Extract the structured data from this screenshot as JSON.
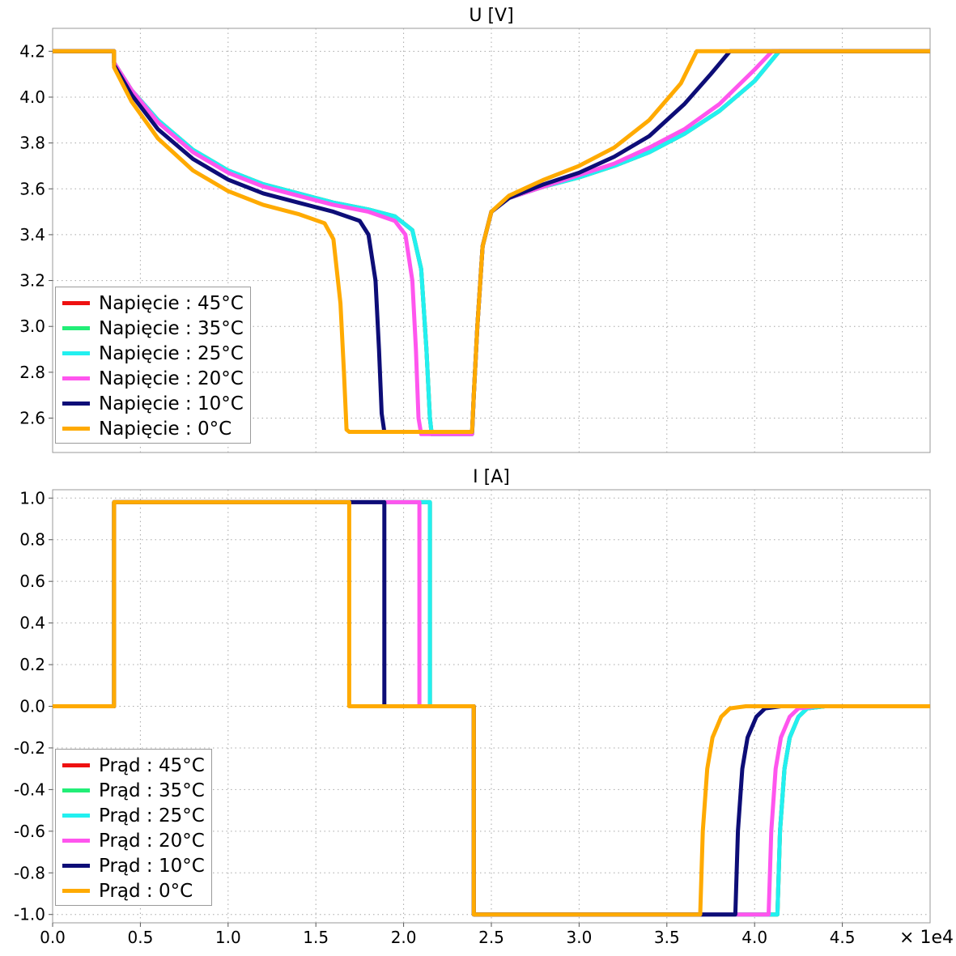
{
  "x_multiplier_label": "× 1e4",
  "colors": {
    "45": "#ee1111",
    "35": "#22ee77",
    "25": "#22f0f0",
    "20": "#ff55ee",
    "10": "#0d0d77",
    "0": "#ffaa00"
  },
  "chart_data": [
    {
      "type": "line",
      "title": "U [V]",
      "xlabel": "",
      "ylabel": "",
      "xlim": [
        0,
        50000
      ],
      "ylim": [
        2.45,
        4.3
      ],
      "x_ticks": [
        "0.0",
        "0.5",
        "1.0",
        "1.5",
        "2.0",
        "2.5",
        "3.0",
        "3.5",
        "4.0",
        "4.5"
      ],
      "y_ticks": [
        "2.6",
        "2.8",
        "3.0",
        "3.2",
        "3.4",
        "3.6",
        "3.8",
        "4.0",
        "4.2"
      ],
      "grid": true,
      "legend_position": "bottom-left",
      "series": [
        {
          "name": "Napięcie : 45°C",
          "color_key": "45",
          "x": [
            0,
            3500,
            3500,
            4500,
            6000,
            8000,
            10000,
            12000,
            14000,
            16000,
            18000,
            19500,
            20500,
            21000,
            21300,
            21500,
            21600,
            23900,
            24000,
            24200,
            24500,
            25000,
            26000,
            28000,
            30000,
            32000,
            34000,
            36000,
            38000,
            40000,
            41400,
            50000
          ],
          "y": [
            4.2,
            4.2,
            4.15,
            4.03,
            3.9,
            3.77,
            3.68,
            3.62,
            3.58,
            3.54,
            3.51,
            3.48,
            3.42,
            3.25,
            2.9,
            2.6,
            2.53,
            2.53,
            2.7,
            3.0,
            3.35,
            3.5,
            3.56,
            3.61,
            3.65,
            3.7,
            3.76,
            3.84,
            3.94,
            4.07,
            4.2,
            4.2
          ]
        },
        {
          "name": "Napięcie : 35°C",
          "color_key": "35",
          "x": [
            0,
            3500,
            3500,
            4500,
            6000,
            8000,
            10000,
            12000,
            14000,
            16000,
            18000,
            19500,
            20500,
            21000,
            21300,
            21500,
            21600,
            23900,
            24000,
            24200,
            24500,
            25000,
            26000,
            28000,
            30000,
            32000,
            34000,
            36000,
            38000,
            40000,
            41400,
            50000
          ],
          "y": [
            4.2,
            4.2,
            4.15,
            4.03,
            3.9,
            3.77,
            3.68,
            3.62,
            3.58,
            3.54,
            3.51,
            3.48,
            3.42,
            3.25,
            2.9,
            2.6,
            2.53,
            2.53,
            2.7,
            3.0,
            3.35,
            3.5,
            3.56,
            3.61,
            3.65,
            3.7,
            3.76,
            3.84,
            3.94,
            4.07,
            4.2,
            4.2
          ]
        },
        {
          "name": "Napięcie : 25°C",
          "color_key": "25",
          "x": [
            0,
            3500,
            3500,
            4500,
            6000,
            8000,
            10000,
            12000,
            14000,
            16000,
            18000,
            19500,
            20500,
            21000,
            21300,
            21500,
            21600,
            23900,
            24000,
            24200,
            24500,
            25000,
            26000,
            28000,
            30000,
            32000,
            34000,
            36000,
            38000,
            40000,
            41400,
            50000
          ],
          "y": [
            4.2,
            4.2,
            4.15,
            4.03,
            3.9,
            3.77,
            3.68,
            3.62,
            3.58,
            3.54,
            3.51,
            3.48,
            3.42,
            3.25,
            2.9,
            2.6,
            2.53,
            2.53,
            2.7,
            3.0,
            3.35,
            3.5,
            3.56,
            3.61,
            3.65,
            3.7,
            3.76,
            3.84,
            3.94,
            4.07,
            4.2,
            4.2
          ]
        },
        {
          "name": "Napięcie : 20°C",
          "color_key": "20",
          "x": [
            0,
            3500,
            3500,
            4500,
            6000,
            8000,
            10000,
            12000,
            14000,
            16000,
            18000,
            19500,
            20100,
            20500,
            20700,
            20850,
            21000,
            23900,
            24000,
            24200,
            24500,
            25000,
            26000,
            28000,
            30000,
            32000,
            34000,
            36000,
            38000,
            40000,
            41000,
            50000
          ],
          "y": [
            4.2,
            4.2,
            4.15,
            4.03,
            3.89,
            3.76,
            3.67,
            3.61,
            3.57,
            3.53,
            3.5,
            3.46,
            3.4,
            3.2,
            2.9,
            2.6,
            2.53,
            2.53,
            2.7,
            3.0,
            3.35,
            3.5,
            3.56,
            3.61,
            3.66,
            3.71,
            3.78,
            3.86,
            3.97,
            4.12,
            4.2,
            4.2
          ]
        },
        {
          "name": "Napięcie : 10°C",
          "color_key": "10",
          "x": [
            0,
            3500,
            3500,
            4500,
            6000,
            8000,
            10000,
            12000,
            14000,
            16000,
            17500,
            18000,
            18400,
            18600,
            18750,
            18900,
            23900,
            24000,
            24200,
            24500,
            25000,
            26000,
            28000,
            30000,
            32000,
            34000,
            36000,
            37500,
            38600,
            50000
          ],
          "y": [
            4.2,
            4.2,
            4.14,
            4.01,
            3.86,
            3.73,
            3.64,
            3.58,
            3.54,
            3.5,
            3.46,
            3.4,
            3.2,
            2.9,
            2.62,
            2.54,
            2.54,
            2.7,
            3.0,
            3.35,
            3.5,
            3.56,
            3.62,
            3.67,
            3.74,
            3.83,
            3.97,
            4.1,
            4.2,
            4.2
          ]
        },
        {
          "name": "Napięcie : 0°C",
          "color_key": "0",
          "x": [
            0,
            3500,
            3500,
            4500,
            6000,
            8000,
            10000,
            12000,
            14000,
            15500,
            16000,
            16400,
            16600,
            16750,
            16900,
            23900,
            24000,
            24200,
            24500,
            25000,
            26000,
            28000,
            30000,
            32000,
            34000,
            35800,
            36700,
            50000
          ],
          "y": [
            4.2,
            4.2,
            4.13,
            3.98,
            3.82,
            3.68,
            3.59,
            3.53,
            3.49,
            3.45,
            3.38,
            3.1,
            2.8,
            2.55,
            2.54,
            2.54,
            2.7,
            3.0,
            3.35,
            3.5,
            3.57,
            3.64,
            3.7,
            3.78,
            3.9,
            4.06,
            4.2,
            4.2
          ]
        }
      ]
    },
    {
      "type": "line",
      "title": "I [A]",
      "xlabel": "",
      "ylabel": "",
      "xlim": [
        0,
        50000
      ],
      "ylim": [
        -1.04,
        1.04
      ],
      "x_ticks": [
        "0.0",
        "0.5",
        "1.0",
        "1.5",
        "2.0",
        "2.5",
        "3.0",
        "3.5",
        "4.0",
        "4.5"
      ],
      "y_ticks": [
        "1.0",
        "0.8",
        "0.6",
        "0.4",
        "0.2",
        "0.0",
        "-0.2",
        "-0.4",
        "-0.6",
        "-0.8",
        "-1.0"
      ],
      "grid": true,
      "legend_position": "bottom-left",
      "series": [
        {
          "name": "Prąd : 45°C",
          "color_key": "45",
          "x": [
            0,
            3500,
            3500,
            21500,
            21500,
            24000,
            24000,
            41300,
            41450,
            41700,
            42000,
            42500,
            43000,
            44000,
            50000
          ],
          "y": [
            0,
            0,
            0.98,
            0.98,
            0,
            0,
            -1.0,
            -1.0,
            -0.6,
            -0.3,
            -0.15,
            -0.05,
            -0.01,
            0,
            0
          ]
        },
        {
          "name": "Prąd : 35°C",
          "color_key": "35",
          "x": [
            0,
            3500,
            3500,
            21500,
            21500,
            24000,
            24000,
            41300,
            41450,
            41700,
            42000,
            42500,
            43000,
            44000,
            50000
          ],
          "y": [
            0,
            0,
            0.98,
            0.98,
            0,
            0,
            -1.0,
            -1.0,
            -0.6,
            -0.3,
            -0.15,
            -0.05,
            -0.01,
            0,
            0
          ]
        },
        {
          "name": "Prąd : 25°C",
          "color_key": "25",
          "x": [
            0,
            3500,
            3500,
            21500,
            21500,
            24000,
            24000,
            41300,
            41450,
            41700,
            42000,
            42500,
            43000,
            44000,
            50000
          ],
          "y": [
            0,
            0,
            0.98,
            0.98,
            0,
            0,
            -1.0,
            -1.0,
            -0.6,
            -0.3,
            -0.15,
            -0.05,
            -0.01,
            0,
            0
          ]
        },
        {
          "name": "Prąd : 20°C",
          "color_key": "20",
          "x": [
            0,
            3500,
            3500,
            20900,
            20900,
            24000,
            24000,
            40800,
            40950,
            41200,
            41500,
            42000,
            42500,
            43500,
            50000
          ],
          "y": [
            0,
            0,
            0.98,
            0.98,
            0,
            0,
            -1.0,
            -1.0,
            -0.6,
            -0.3,
            -0.15,
            -0.05,
            -0.01,
            0,
            0
          ]
        },
        {
          "name": "Prąd : 10°C",
          "color_key": "10",
          "x": [
            0,
            3500,
            3500,
            18900,
            18900,
            24000,
            24000,
            38900,
            39050,
            39300,
            39600,
            40100,
            40600,
            41500,
            50000
          ],
          "y": [
            0,
            0,
            0.98,
            0.98,
            0,
            0,
            -1.0,
            -1.0,
            -0.6,
            -0.3,
            -0.15,
            -0.05,
            -0.01,
            0,
            0
          ]
        },
        {
          "name": "Prąd : 0°C",
          "color_key": "0",
          "x": [
            0,
            3500,
            3500,
            16900,
            16900,
            24000,
            24000,
            36900,
            37050,
            37300,
            37600,
            38100,
            38600,
            39500,
            50000
          ],
          "y": [
            0,
            0,
            0.98,
            0.98,
            0,
            0,
            -1.0,
            -1.0,
            -0.6,
            -0.3,
            -0.15,
            -0.05,
            -0.01,
            0,
            0
          ]
        }
      ]
    }
  ]
}
